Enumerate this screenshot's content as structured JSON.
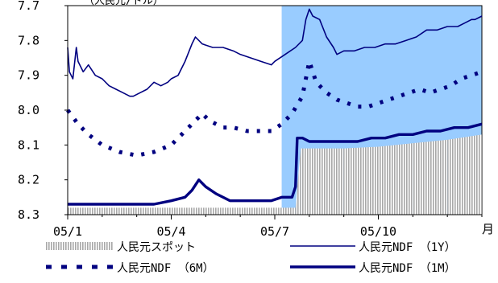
{
  "chart_data": {
    "type": "line",
    "title": "",
    "ylabel": "（人民元/ドル）",
    "xlabel": "月",
    "y_axis": {
      "min": 7.7,
      "max": 8.3,
      "inverted": true,
      "ticks": [
        "7.7",
        "7.8",
        "7.9",
        "8.0",
        "8.1",
        "8.2",
        "8.3"
      ]
    },
    "x_axis": {
      "range": [
        0,
        12
      ],
      "ticks": [
        {
          "label": "05/1",
          "x": 0
        },
        {
          "label": "05/4",
          "x": 3
        },
        {
          "label": "05/7",
          "x": 6
        },
        {
          "label": "05/10",
          "x": 9
        }
      ]
    },
    "shaded_region": {
      "x_start": 6.2,
      "x_end": 12,
      "color": "#99ccff"
    },
    "grid": false,
    "legend": "bottom",
    "series": [
      {
        "name": "人民元スポット",
        "color": "#b8b8b8",
        "style": "hatched-bar",
        "points": [
          [
            0,
            8.28
          ],
          [
            6.6,
            8.28
          ],
          [
            6.75,
            8.11
          ],
          [
            8,
            8.11
          ],
          [
            9,
            8.105
          ],
          [
            10,
            8.095
          ],
          [
            11,
            8.085
          ],
          [
            12,
            8.07
          ]
        ]
      },
      {
        "name": "人民元NDF （1Y）",
        "color": "#000080",
        "style": "thin",
        "points": [
          [
            0,
            7.82
          ],
          [
            0.05,
            7.89
          ],
          [
            0.15,
            7.91
          ],
          [
            0.25,
            7.82
          ],
          [
            0.3,
            7.86
          ],
          [
            0.45,
            7.89
          ],
          [
            0.6,
            7.87
          ],
          [
            0.8,
            7.9
          ],
          [
            1.0,
            7.91
          ],
          [
            1.2,
            7.93
          ],
          [
            1.4,
            7.94
          ],
          [
            1.6,
            7.95
          ],
          [
            1.8,
            7.96
          ],
          [
            1.9,
            7.96
          ],
          [
            2.1,
            7.95
          ],
          [
            2.3,
            7.94
          ],
          [
            2.5,
            7.92
          ],
          [
            2.7,
            7.93
          ],
          [
            2.9,
            7.92
          ],
          [
            3.0,
            7.91
          ],
          [
            3.2,
            7.9
          ],
          [
            3.4,
            7.86
          ],
          [
            3.6,
            7.81
          ],
          [
            3.7,
            7.79
          ],
          [
            3.9,
            7.81
          ],
          [
            4.2,
            7.82
          ],
          [
            4.5,
            7.82
          ],
          [
            4.8,
            7.83
          ],
          [
            5.0,
            7.84
          ],
          [
            5.3,
            7.85
          ],
          [
            5.6,
            7.86
          ],
          [
            5.9,
            7.87
          ],
          [
            6.0,
            7.86
          ],
          [
            6.3,
            7.84
          ],
          [
            6.6,
            7.82
          ],
          [
            6.8,
            7.8
          ],
          [
            6.9,
            7.74
          ],
          [
            7.0,
            7.71
          ],
          [
            7.1,
            7.73
          ],
          [
            7.3,
            7.74
          ],
          [
            7.5,
            7.79
          ],
          [
            7.7,
            7.82
          ],
          [
            7.8,
            7.84
          ],
          [
            8.0,
            7.83
          ],
          [
            8.3,
            7.83
          ],
          [
            8.6,
            7.82
          ],
          [
            8.9,
            7.82
          ],
          [
            9.2,
            7.81
          ],
          [
            9.5,
            7.81
          ],
          [
            9.8,
            7.8
          ],
          [
            10.1,
            7.79
          ],
          [
            10.4,
            7.77
          ],
          [
            10.7,
            7.77
          ],
          [
            11.0,
            7.76
          ],
          [
            11.3,
            7.76
          ],
          [
            11.5,
            7.75
          ],
          [
            11.7,
            7.74
          ],
          [
            11.8,
            7.74
          ],
          [
            12,
            7.73
          ]
        ]
      },
      {
        "name": "人民元NDF （6M）",
        "color": "#000080",
        "style": "dashed",
        "points": [
          [
            0,
            8.0
          ],
          [
            0.3,
            8.04
          ],
          [
            0.6,
            8.07
          ],
          [
            1.0,
            8.1
          ],
          [
            1.5,
            8.12
          ],
          [
            2.0,
            8.13
          ],
          [
            2.5,
            8.12
          ],
          [
            3.0,
            8.1
          ],
          [
            3.4,
            8.06
          ],
          [
            3.7,
            8.03
          ],
          [
            3.9,
            8.01
          ],
          [
            4.1,
            8.03
          ],
          [
            4.5,
            8.05
          ],
          [
            4.8,
            8.05
          ],
          [
            5.2,
            8.06
          ],
          [
            5.5,
            8.06
          ],
          [
            5.9,
            8.06
          ],
          [
            6.2,
            8.04
          ],
          [
            6.5,
            8.01
          ],
          [
            6.8,
            7.96
          ],
          [
            7.0,
            7.86
          ],
          [
            7.2,
            7.92
          ],
          [
            7.5,
            7.95
          ],
          [
            7.8,
            7.97
          ],
          [
            8.1,
            7.98
          ],
          [
            8.4,
            7.99
          ],
          [
            8.7,
            7.99
          ],
          [
            9.0,
            7.98
          ],
          [
            9.3,
            7.97
          ],
          [
            9.6,
            7.96
          ],
          [
            9.9,
            7.95
          ],
          [
            10.2,
            7.94
          ],
          [
            10.5,
            7.95
          ],
          [
            10.8,
            7.94
          ],
          [
            11.1,
            7.93
          ],
          [
            11.4,
            7.91
          ],
          [
            11.7,
            7.9
          ],
          [
            12,
            7.89
          ]
        ]
      },
      {
        "name": "人民元NDF （1M）",
        "color": "#000080",
        "style": "thick",
        "points": [
          [
            0,
            8.27
          ],
          [
            0.5,
            8.27
          ],
          [
            1.0,
            8.27
          ],
          [
            1.5,
            8.27
          ],
          [
            2.0,
            8.27
          ],
          [
            2.5,
            8.27
          ],
          [
            3.0,
            8.26
          ],
          [
            3.4,
            8.25
          ],
          [
            3.6,
            8.23
          ],
          [
            3.8,
            8.2
          ],
          [
            4.0,
            8.22
          ],
          [
            4.3,
            8.24
          ],
          [
            4.7,
            8.26
          ],
          [
            5.0,
            8.26
          ],
          [
            5.3,
            8.26
          ],
          [
            5.6,
            8.26
          ],
          [
            5.9,
            8.26
          ],
          [
            6.2,
            8.25
          ],
          [
            6.5,
            8.25
          ],
          [
            6.6,
            8.22
          ],
          [
            6.65,
            8.08
          ],
          [
            6.8,
            8.08
          ],
          [
            7.0,
            8.09
          ],
          [
            7.3,
            8.09
          ],
          [
            7.6,
            8.09
          ],
          [
            8.0,
            8.09
          ],
          [
            8.4,
            8.09
          ],
          [
            8.8,
            8.08
          ],
          [
            9.2,
            8.08
          ],
          [
            9.6,
            8.07
          ],
          [
            10.0,
            8.07
          ],
          [
            10.4,
            8.06
          ],
          [
            10.8,
            8.06
          ],
          [
            11.2,
            8.05
          ],
          [
            11.6,
            8.05
          ],
          [
            12,
            8.04
          ]
        ]
      }
    ]
  }
}
